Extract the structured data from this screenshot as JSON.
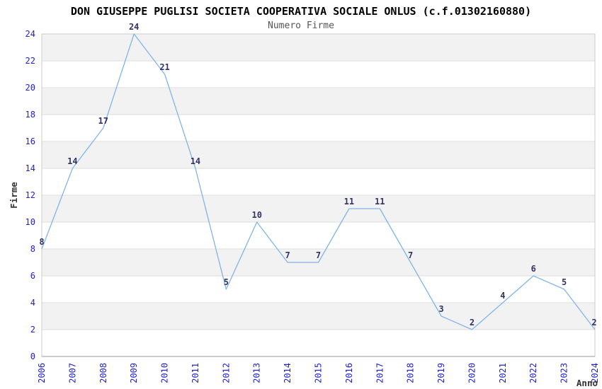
{
  "chart_data": {
    "type": "line",
    "title": "DON GIUSEPPE PUGLISI SOCIETA COOPERATIVA SOCIALE ONLUS (c.f.01302160880)",
    "subtitle": "Numero Firme",
    "xlabel": "Anno",
    "ylabel": "Firme",
    "categories": [
      "2006",
      "2007",
      "2008",
      "2009",
      "2010",
      "2011",
      "2012",
      "2013",
      "2014",
      "2015",
      "2016",
      "2017",
      "2018",
      "2019",
      "2020",
      "2021",
      "2022",
      "2023",
      "2024"
    ],
    "values": [
      8,
      14,
      17,
      24,
      21,
      14,
      5,
      10,
      7,
      7,
      11,
      11,
      7,
      3,
      2,
      4,
      6,
      5,
      2
    ],
    "ylim": [
      0,
      24
    ],
    "ytick_step": 2,
    "grid": true,
    "legend": "none",
    "bands_alternating": true,
    "colors": {
      "line": "#82b4e8",
      "data_label": "#333366",
      "tick_label": "#2222cc",
      "axis_title": "#333333",
      "title": "#000000",
      "subtitle": "#555555",
      "band_alt": "#f2f2f2",
      "band_base": "#ffffff",
      "gridline": "#dddddd",
      "plot_border": "#cccccc",
      "axis_line": "#999999",
      "background": "#ffffff"
    }
  }
}
